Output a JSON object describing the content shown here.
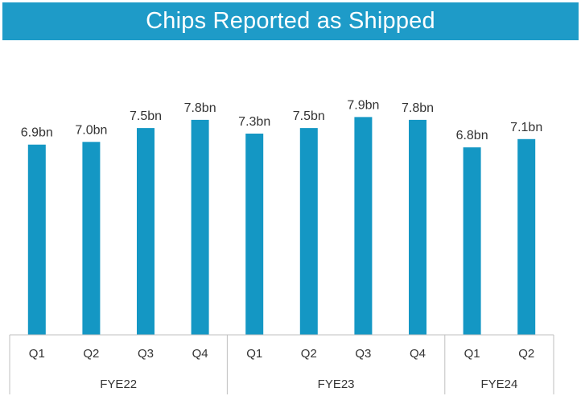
{
  "colors": {
    "bar": "#1497c4",
    "title_bg": "#1e9bc8",
    "axis": "#bfbfbf"
  },
  "chart_data": {
    "type": "bar",
    "title": "Chips Reported as Shipped",
    "categories": [
      "Q1",
      "Q2",
      "Q3",
      "Q4",
      "Q1",
      "Q2",
      "Q3",
      "Q4",
      "Q1",
      "Q2"
    ],
    "groups": [
      {
        "name": "FYE22",
        "count": 4
      },
      {
        "name": "FYE23",
        "count": 4
      },
      {
        "name": "FYE24",
        "count": 2
      }
    ],
    "values": [
      6.9,
      7.0,
      7.5,
      7.8,
      7.3,
      7.5,
      7.9,
      7.8,
      6.8,
      7.1
    ],
    "data_labels": [
      "6.9bn",
      "7.0bn",
      "7.5bn",
      "7.8bn",
      "7.3bn",
      "7.5bn",
      "7.9bn",
      "7.8bn",
      "6.8bn",
      "7.1bn"
    ],
    "unit": "bn",
    "xlabel": "",
    "ylabel": "",
    "ylim": [
      0,
      8.0
    ],
    "grid": false
  }
}
